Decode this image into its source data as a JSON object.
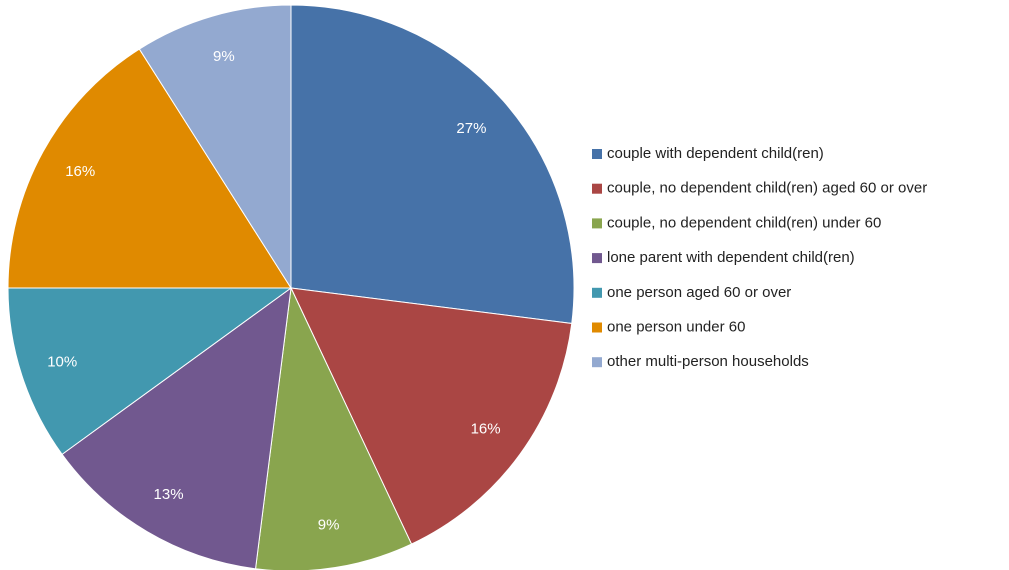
{
  "chart_data": {
    "type": "pie",
    "categories": [
      "couple with dependent child(ren)",
      "couple, no dependent child(ren) aged 60 or over",
      "couple, no dependent child(ren) under 60",
      "lone parent with dependent child(ren)",
      "one person aged 60 or over",
      "one person under 60",
      "other multi-person households"
    ],
    "values": [
      27,
      16,
      9,
      13,
      10,
      16,
      9
    ],
    "value_labels": [
      "27%",
      "16%",
      "9%",
      "13%",
      "10%",
      "16%",
      "9%"
    ],
    "colors": [
      "#4672a8",
      "#aa4644",
      "#89a54e",
      "#71588f",
      "#4298af",
      "#e08a00",
      "#93a9d0"
    ],
    "legend": "right"
  }
}
